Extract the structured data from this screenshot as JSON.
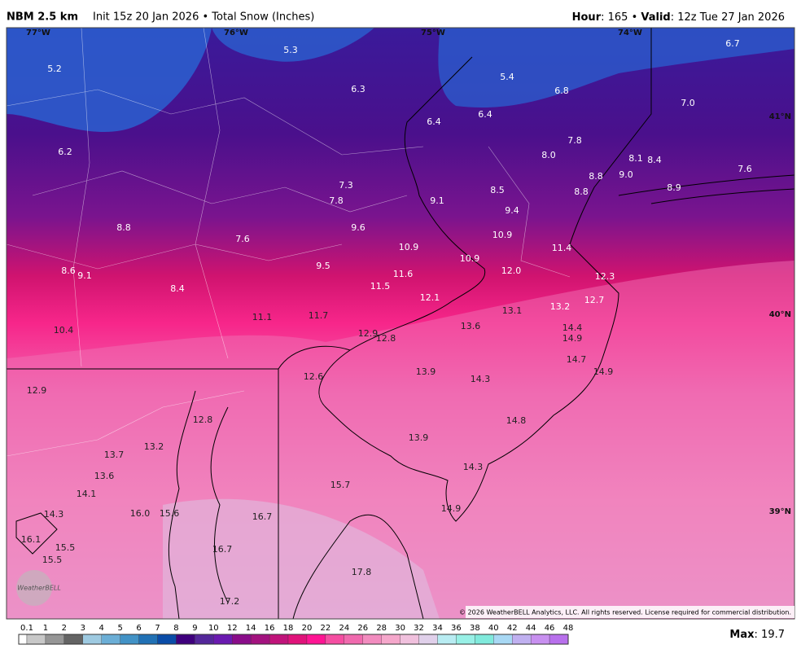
{
  "header": {
    "model": "NBM 2.5 km",
    "subtitle": "Init 15z 20 Jan 2026 • Total Snow (Inches)",
    "hour_label": "Hour",
    "hour_text": ": 165 • ",
    "valid_label": "Valid",
    "valid_text": ": 12z Tue 27 Jan 2026"
  },
  "map": {
    "lon_labels": [
      "77°W",
      "76°W",
      "75°W",
      "74°W"
    ],
    "lat_labels": [
      "41°N",
      "40°N",
      "39°N"
    ],
    "values": [
      "5.3",
      "5.2",
      "6.3",
      "5.4",
      "6.8",
      "6.7",
      "7.0",
      "6.4",
      "6.4",
      "6.2",
      "7.8",
      "8.0",
      "8.1",
      "8.4",
      "9.0",
      "8.8",
      "7.6",
      "7.3",
      "8.5",
      "8.8",
      "8.9",
      "7.8",
      "9.1",
      "9.4",
      "8.8",
      "9.6",
      "10.9",
      "7.6",
      "10.9",
      "11.4",
      "10.9",
      "9.5",
      "8.6",
      "9.1",
      "11.6",
      "12.0",
      "12.3",
      "11.5",
      "8.4",
      "12.1",
      "12.7",
      "13.2",
      "13.1",
      "11.1",
      "11.7",
      "10.4",
      "13.6",
      "14.4",
      "12.9",
      "12.8",
      "14.9",
      "14.7",
      "13.9",
      "14.9",
      "12.6",
      "14.3",
      "12.9",
      "14.8",
      "12.8",
      "13.9",
      "13.2",
      "13.7",
      "14.3",
      "13.6",
      "15.7",
      "14.1",
      "14.9",
      "16.0",
      "15.6",
      "14.3",
      "16.7",
      "16.1",
      "15.5",
      "16.7",
      "15.5",
      "17.8",
      "17.2"
    ],
    "copyright": "© 2026 WeatherBELL Analytics, LLC. All rights reserved. License required for commercial distribution.",
    "logo": "WeatherBELL"
  },
  "colorbar": {
    "levels": [
      "0.1",
      "1",
      "2",
      "3",
      "4",
      "5",
      "6",
      "7",
      "8",
      "9",
      "10",
      "12",
      "14",
      "16",
      "18",
      "20",
      "22",
      "24",
      "26",
      "28",
      "30",
      "32",
      "34",
      "36",
      "38",
      "40",
      "42",
      "44",
      "46",
      "48"
    ],
    "colors": [
      "#ffffff",
      "#c8c8c8",
      "#969696",
      "#646464",
      "#9ecae1",
      "#6baed6",
      "#4292c6",
      "#2171b5",
      "#0a4ca8",
      "#3f007d",
      "#54279a",
      "#6a1ab0",
      "#8a0c8a",
      "#a3127f",
      "#c0137a",
      "#e0127a",
      "#ff1493",
      "#f54ea2",
      "#f06aae",
      "#f28cbf",
      "#f5a7cb",
      "#f0c0dd",
      "#e0d0ea",
      "#b8ecf2",
      "#98f0e6",
      "#80eadc",
      "#a8d8f4",
      "#c0b0f0",
      "#c890f0",
      "#b870ec"
    ],
    "max_label": "Max",
    "max_text": ": 19.7"
  }
}
